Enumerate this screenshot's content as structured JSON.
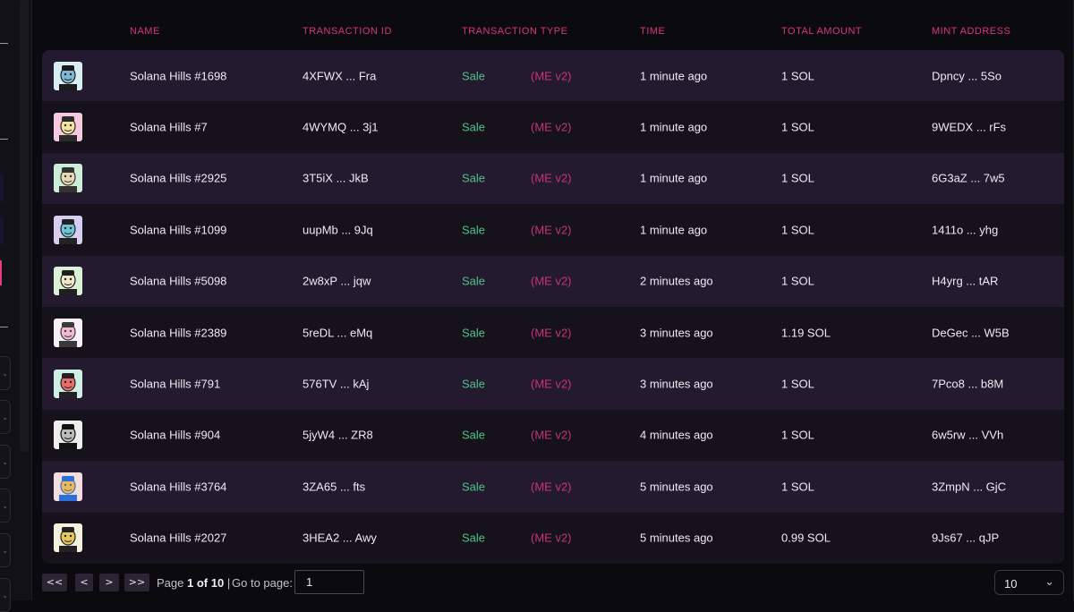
{
  "columns": {
    "name": "NAME",
    "tx_id": "TRANSACTION ID",
    "tx_type": "TRANSACTION TYPE",
    "time": "TIME",
    "total": "TOTAL AMOUNT",
    "mint": "MINT ADDRESS"
  },
  "rows": [
    {
      "name": "Solana Hills #1698",
      "tx_id": "4XFWX ... Fra",
      "type": "Sale",
      "market": "(ME v2)",
      "time": "1 minute ago",
      "amount": "1 SOL",
      "mint": "Dpncy ... 5So",
      "thumb_colors": [
        "#d8eef2",
        "#7fb8d6",
        "#1b1b1b"
      ]
    },
    {
      "name": "Solana Hills #7",
      "tx_id": "4WYMQ ... 3j1",
      "type": "Sale",
      "market": "(ME v2)",
      "time": "1 minute ago",
      "amount": "1 SOL",
      "mint": "9WEDX ... rFs",
      "thumb_colors": [
        "#f6c9de",
        "#f2e3a0",
        "#2a2a2a"
      ]
    },
    {
      "name": "Solana Hills #2925",
      "tx_id": "3T5iX ... JkB",
      "type": "Sale",
      "market": "(ME v2)",
      "time": "1 minute ago",
      "amount": "1 SOL",
      "mint": "6G3aZ ... 7w5",
      "thumb_colors": [
        "#cdeed6",
        "#e8d9b5",
        "#333333"
      ]
    },
    {
      "name": "Solana Hills #1099",
      "tx_id": "uupMb ... 9Jq",
      "type": "Sale",
      "market": "(ME v2)",
      "time": "1 minute ago",
      "amount": "1 SOL",
      "mint": "1411o ... yhg",
      "thumb_colors": [
        "#d6cdf0",
        "#6ec3d4",
        "#222222"
      ]
    },
    {
      "name": "Solana Hills #5098",
      "tx_id": "2w8xP ... jqw",
      "type": "Sale",
      "market": "(ME v2)",
      "time": "2 minutes ago",
      "amount": "1 SOL",
      "mint": "H4yrg ... tAR",
      "thumb_colors": [
        "#dbf2d6",
        "#efe7c8",
        "#1f1f1f"
      ]
    },
    {
      "name": "Solana Hills #2389",
      "tx_id": "5reDL ... eMq",
      "type": "Sale",
      "market": "(ME v2)",
      "time": "3 minutes ago",
      "amount": "1.19 SOL",
      "mint": "DeGec ... W5B",
      "thumb_colors": [
        "#f7f0f7",
        "#f3b9d3",
        "#3a3a3a"
      ]
    },
    {
      "name": "Solana Hills #791",
      "tx_id": "576TV ... kAj",
      "type": "Sale",
      "market": "(ME v2)",
      "time": "3 minutes ago",
      "amount": "1 SOL",
      "mint": "7Pco8 ... b8M",
      "thumb_colors": [
        "#cfeee5",
        "#e86d6d",
        "#222222"
      ]
    },
    {
      "name": "Solana Hills #904",
      "tx_id": "5jyW4 ... ZR8",
      "type": "Sale",
      "market": "(ME v2)",
      "time": "4 minutes ago",
      "amount": "1 SOL",
      "mint": "6w5rw ... VVh",
      "thumb_colors": [
        "#eeeeee",
        "#bbbbbb",
        "#111111"
      ]
    },
    {
      "name": "Solana Hills #3764",
      "tx_id": "3ZA65 ... fts",
      "type": "Sale",
      "market": "(ME v2)",
      "time": "5 minutes ago",
      "amount": "1 SOL",
      "mint": "3ZmpN ... GjC",
      "thumb_colors": [
        "#f3dede",
        "#f2b84b",
        "#2f6fd8"
      ]
    },
    {
      "name": "Solana Hills #2027",
      "tx_id": "3HEA2 ... Awy",
      "type": "Sale",
      "market": "(ME v2)",
      "time": "5 minutes ago",
      "amount": "0.99 SOL",
      "mint": "9Js67 ... qJP",
      "thumb_colors": [
        "#f4f1dc",
        "#e8c85a",
        "#222222"
      ]
    }
  ],
  "pagination": {
    "first": "<<",
    "prev": "<",
    "next": ">",
    "last": ">>",
    "page_prefix": "Page",
    "current": "1 of 10",
    "separator": "|",
    "goto_label": "Go to page:",
    "goto_value": "1",
    "page_size": "10"
  },
  "colors": {
    "header_text": "#d8377f",
    "sale": "#4fc387",
    "market": "#c8337a",
    "row_odd": "#231a2f",
    "row_even": "#15121c"
  },
  "icons": {
    "page_size_chevron": "chevron-down-icon"
  }
}
